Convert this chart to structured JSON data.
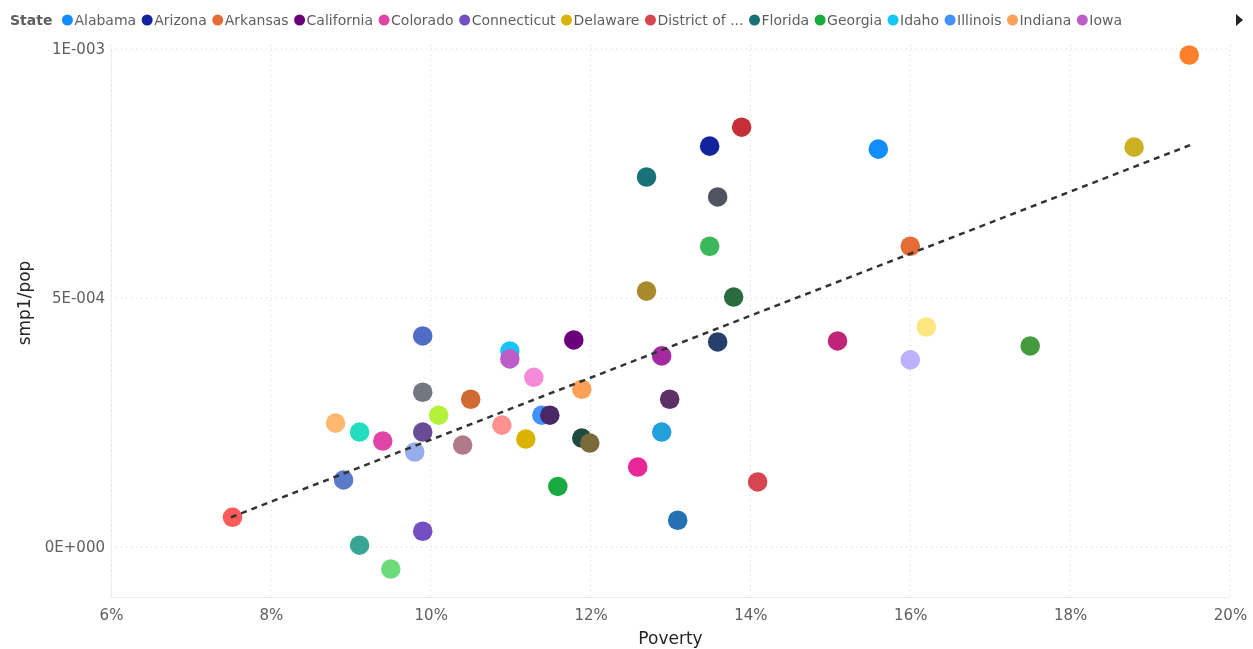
{
  "chart_data": {
    "type": "scatter",
    "xlabel": "Poverty",
    "ylabel": "smp1/pop",
    "legend_title": "State",
    "legend": "top left",
    "grid": true,
    "marker": "circle",
    "xlim": [
      6,
      20
    ],
    "xticks": [
      {
        "value": 6,
        "label": "6%"
      },
      {
        "value": 8,
        "label": "8%"
      },
      {
        "value": 10,
        "label": "10%"
      },
      {
        "value": 12,
        "label": "12%"
      },
      {
        "value": 14,
        "label": "14%"
      },
      {
        "value": 16,
        "label": "16%"
      },
      {
        "value": 18,
        "label": "18%"
      },
      {
        "value": 20,
        "label": "20%"
      }
    ],
    "ylim": [
      -0.0001,
      0.001
    ],
    "yticks": [
      {
        "value": 0,
        "label": "0E+000"
      },
      {
        "value": 0.0005,
        "label": "5E-004"
      },
      {
        "value": 0.001,
        "label": "1E-003"
      }
    ],
    "series": [
      {
        "name": "Alabama",
        "color": "#118dff",
        "x": [
          15.6
        ],
        "values": [
          0.000799
        ]
      },
      {
        "name": "Arizona",
        "color": "#12239e",
        "x": [
          13.49
        ],
        "values": [
          0.000805
        ]
      },
      {
        "name": "Arkansas",
        "color": "#e66c37",
        "x": [
          16.0
        ],
        "values": [
          0.000604
        ]
      },
      {
        "name": "California",
        "color": "#6b007b",
        "x": [
          11.79
        ],
        "values": [
          0.000416
        ]
      },
      {
        "name": "Colorado",
        "color": "#e044a7",
        "x": [
          9.4
        ],
        "values": [
          0.000213
        ]
      },
      {
        "name": "Connecticut",
        "color": "#744ec2",
        "x": [
          9.9
        ],
        "values": [
          3.2e-05
        ]
      },
      {
        "name": "Delaware",
        "color": "#d9b300",
        "x": [
          11.19
        ],
        "values": [
          0.000217
        ]
      },
      {
        "name": "District of ...",
        "color": "#d64550",
        "x": [
          14.09
        ],
        "values": [
          0.000131
        ]
      },
      {
        "name": "Florida",
        "color": "#197278",
        "x": [
          12.7
        ],
        "values": [
          0.000743
        ]
      },
      {
        "name": "Georgia",
        "color": "#1aab40",
        "x": [
          11.59
        ],
        "values": [
          0.000122
        ]
      },
      {
        "name": "Idaho",
        "color": "#15c6f4",
        "x": [
          10.99
        ],
        "values": [
          0.000394
        ]
      },
      {
        "name": "Illinois",
        "color": "#4092ff",
        "x": [
          11.39
        ],
        "values": [
          0.000265
        ]
      },
      {
        "name": "Indiana",
        "color": "#ffa058",
        "x": [
          11.89
        ],
        "values": [
          0.000317
        ]
      },
      {
        "name": "Iowa",
        "color": "#be5dc9",
        "x": [
          10.99
        ],
        "values": [
          0.000378
        ]
      },
      {
        "x": [
          7.52,
          8.81,
          8.91,
          9.11,
          9.11,
          9.5,
          9.8,
          9.9,
          9.9,
          9.9,
          10.1,
          10.4,
          10.5,
          10.89,
          11.29,
          11.49,
          11.89,
          11.99,
          12.59,
          12.7,
          12.89,
          12.89,
          12.99,
          13.09,
          13.49,
          13.59,
          13.59,
          13.79,
          13.89,
          15.09,
          16.0,
          16.2,
          17.5,
          18.8,
          19.49
        ],
        "values": [
          6e-05,
          0.000249,
          0.000135,
          0.000231,
          4e-06,
          -4.4e-05,
          0.000191,
          0.000424,
          0.000311,
          0.000231,
          0.000265,
          0.000205,
          0.000297,
          0.000245,
          0.000341,
          0.000265,
          0.000219,
          0.000209,
          0.000161,
          0.000514,
          0.000384,
          0.000231,
          0.000297,
          5.4e-05,
          0.000604,
          0.000703,
          0.000412,
          0.000502,
          0.000843,
          0.000414,
          0.000376,
          0.000442,
          0.000404,
          0.000803,
          0.000988
        ],
        "colors": [
          "#ff5a5a",
          "#ffb870",
          "#5b7bc9",
          "#22ddc0",
          "#3ba595",
          "#6ddb7a",
          "#98aeeb",
          "#4f6dc4",
          "#737880",
          "#6a4b95",
          "#b5f03a",
          "#b07a88",
          "#d06a30",
          "#ff9090",
          "#f48ad8",
          "#4a2868",
          "#1e4a40",
          "#7a6a3a",
          "#e82899",
          "#a88a2c",
          "#a52aa0",
          "#22a0dc",
          "#5e3068",
          "#2470b0",
          "#3ab85a",
          "#4f5560",
          "#233f6a",
          "#2a6b40",
          "#c53038",
          "#c02478",
          "#bdb0ff",
          "#ffe680",
          "#449a3c",
          "#ccb024",
          "#ff7f2a"
        ]
      },
      {
        "type": "line",
        "color": "#333333",
        "line_style": "dashed",
        "marker": "none",
        "x": [
          7.5,
          19.5
        ],
        "values": [
          6e-05,
          0.000807
        ]
      }
    ]
  }
}
